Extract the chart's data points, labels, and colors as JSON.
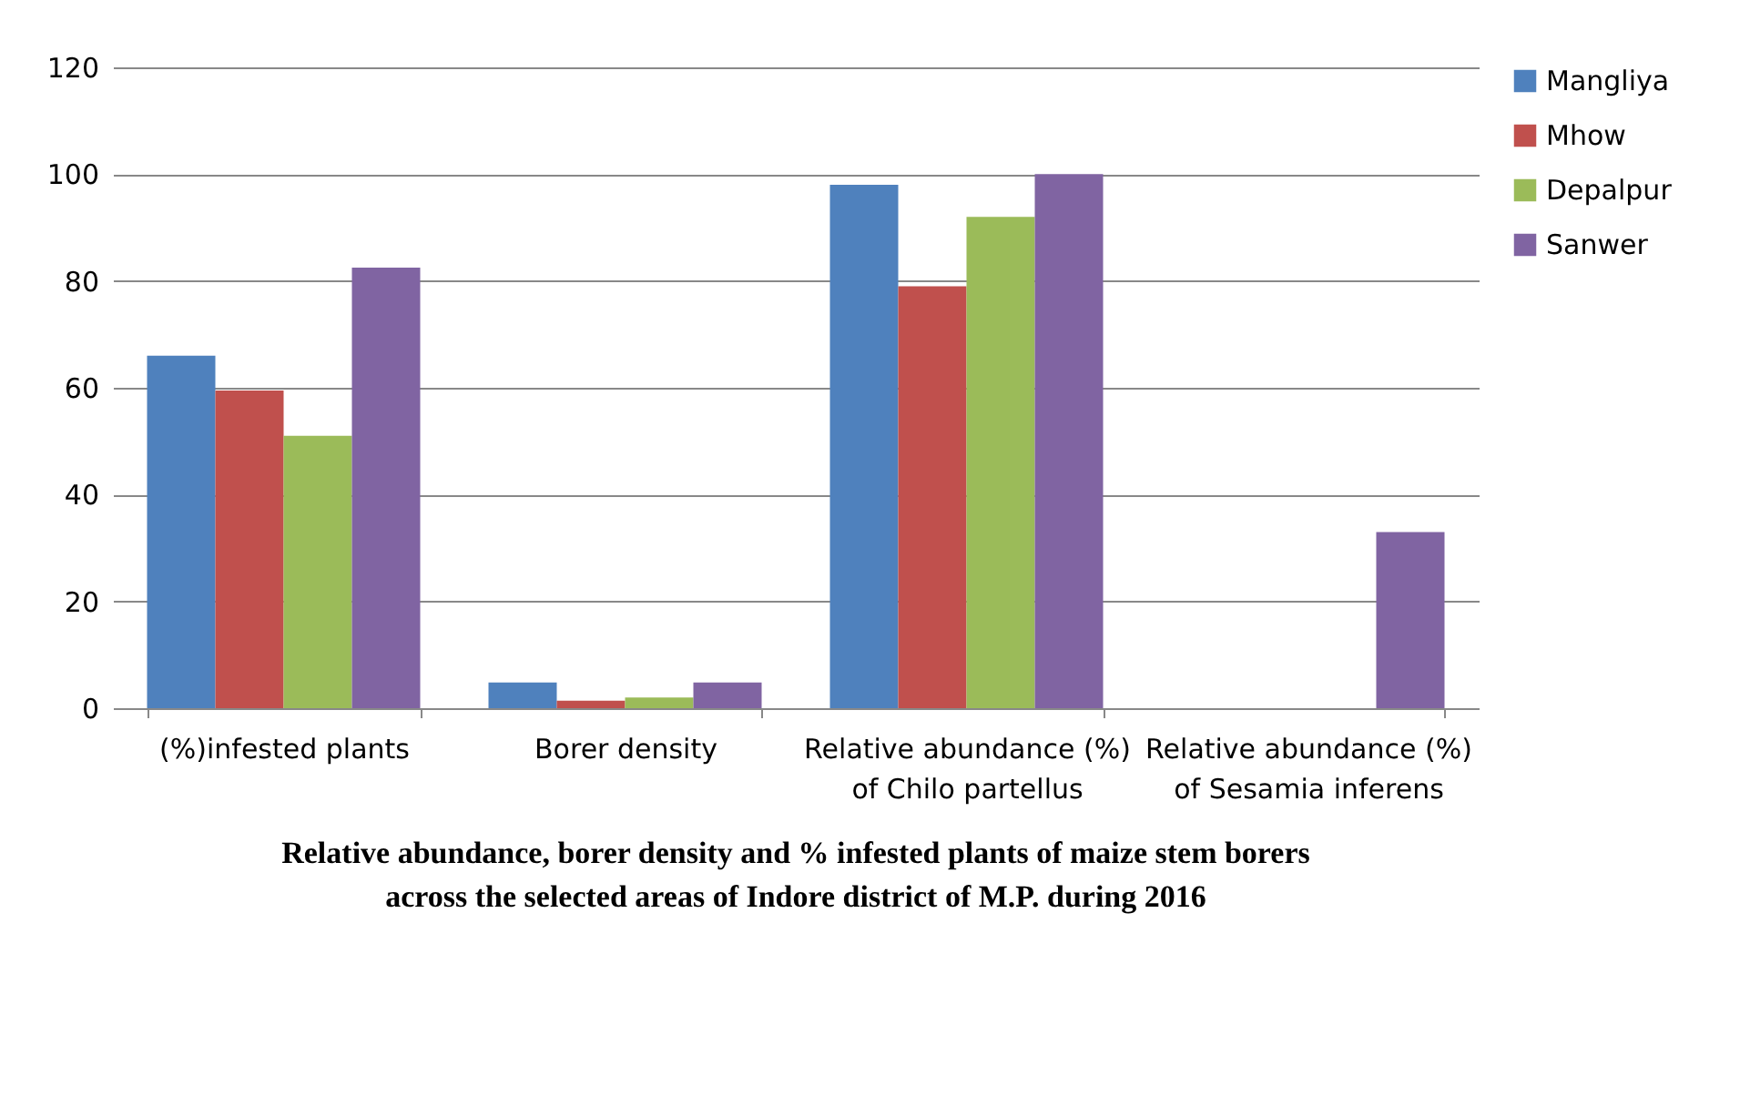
{
  "chart_data": {
    "type": "bar",
    "title": "Relative abundance, borer density and % infested plants of maize stem borers across the selected areas of Indore district of M.P. during 2016",
    "categories": [
      "(%)infested plants",
      "Borer density",
      "Relative abundance (%) of Chilo partellus",
      "Relative abundance (%) of Sesamia inferens"
    ],
    "series": [
      {
        "name": "Mangliya",
        "color": "#4f81bd",
        "values": [
          66,
          4.8,
          98,
          0
        ]
      },
      {
        "name": "Mhow",
        "color": "#c0504d",
        "values": [
          59.5,
          1.4,
          79,
          0
        ]
      },
      {
        "name": "Depalpur",
        "color": "#9bbb59",
        "values": [
          51,
          2,
          92,
          0
        ]
      },
      {
        "name": "Sanwer",
        "color": "#8064a2",
        "values": [
          82.5,
          4.8,
          100,
          33
        ]
      }
    ],
    "ylim": [
      0,
      120
    ],
    "yticks": [
      0,
      20,
      40,
      60,
      80,
      100,
      120
    ],
    "grid": "y",
    "legend": "right"
  }
}
